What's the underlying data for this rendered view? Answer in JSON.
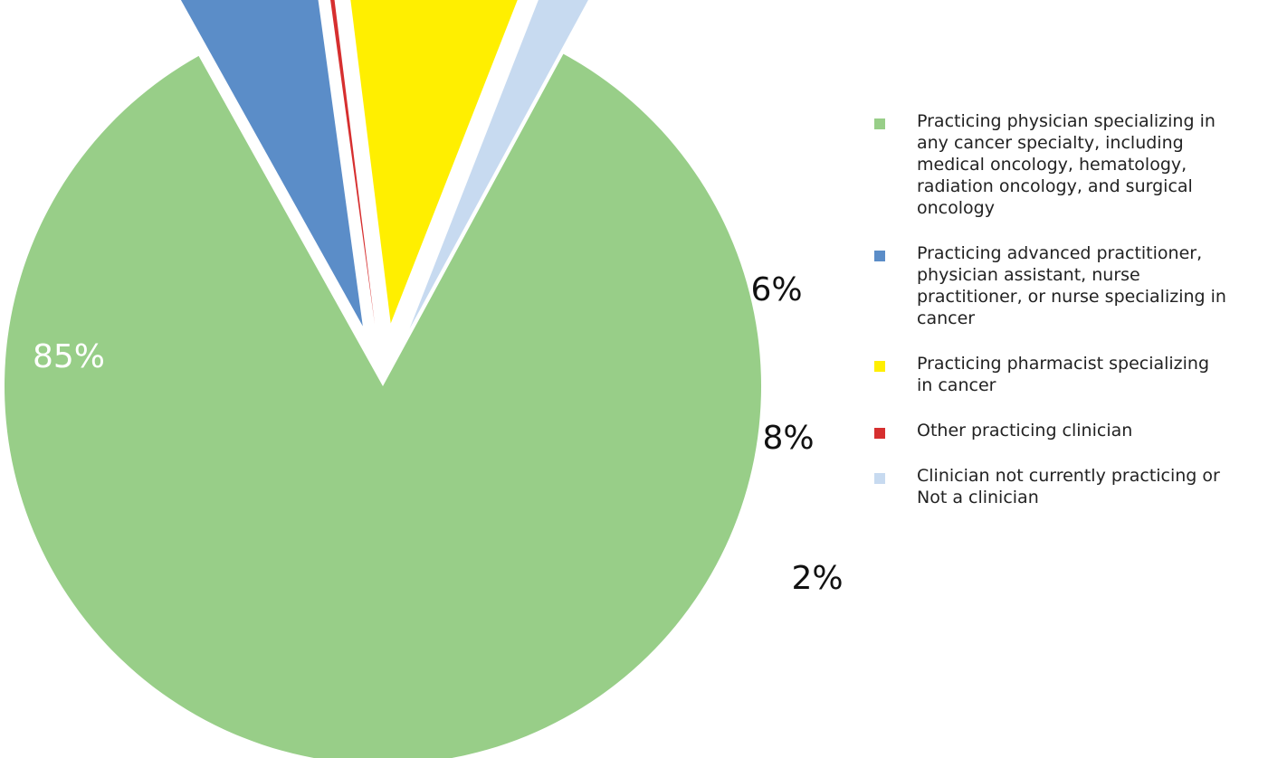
{
  "chart_data": {
    "type": "pie",
    "legend_position": "right",
    "slices": [
      {
        "legend_label": "Practicing physician specializing in any cancer specialty, including medical oncology, hematology, radiation oncology, and surgical oncology",
        "value": 85,
        "data_label": "85%",
        "color": "#98CE88",
        "label_color": "#ffffff",
        "exploded": false
      },
      {
        "legend_label": "Practicing advanced practitioner, physician assistant, nurse practitioner, or nurse specializing in cancer",
        "value": 6,
        "data_label": "6%",
        "color": "#5B8DC8",
        "label_color": "#111111",
        "exploded": true
      },
      {
        "legend_label": "Other practicing clinician",
        "value": 0.2,
        "data_label": "",
        "color": "#D62F2F",
        "label_color": "#111111",
        "exploded": true
      },
      {
        "legend_label": "Practicing pharmacist specializing in cancer",
        "value": 8,
        "data_label": "8%",
        "color": "#FFEF00",
        "label_color": "#111111",
        "exploded": true
      },
      {
        "legend_label": "Clinician not currently practicing or Not a clinician",
        "value": 2,
        "data_label": "2%",
        "color": "#C7DAF0",
        "label_color": "#111111",
        "exploded": true
      }
    ],
    "legend_order": [
      0,
      1,
      3,
      2,
      4
    ]
  }
}
